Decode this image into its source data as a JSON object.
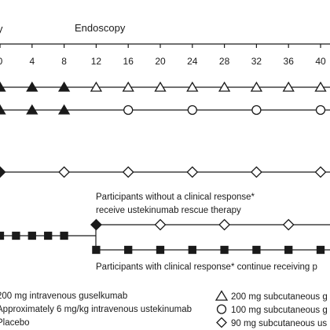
{
  "header": {
    "left_fragment": "y",
    "endoscopy_label": "Endoscopy"
  },
  "timeline": {
    "weeks": [
      "0",
      "4",
      "8",
      "12",
      "16",
      "20",
      "24",
      "28",
      "32",
      "36",
      "40"
    ]
  },
  "annotations": {
    "nonresponder_line1": "Participants without a clinical response*",
    "nonresponder_line2": "receive ustekinumab rescue therapy",
    "responder_line": "Participants with clinical response* continue receiving p"
  },
  "legend": {
    "left": [
      "200 mg intravenous guselkumab",
      "Approximately 6 mg/kg intravenous ustekinumab",
      "Placebo"
    ],
    "right": [
      "200 mg subcutaneous g",
      "100 mg subcutaneous g",
      "90 mg subcutaneous us"
    ]
  },
  "colors": {
    "ink": "#1a1a1a",
    "background": "#ffffff"
  },
  "icons": {
    "filled-triangle": "200 mg intravenous guselkumab",
    "open-triangle": "200 mg subcutaneous",
    "open-circle": "100 mg subcutaneous",
    "open-diamond": "90 mg subcutaneous",
    "filled-diamond": "transition to rescue",
    "filled-square": "placebo"
  }
}
